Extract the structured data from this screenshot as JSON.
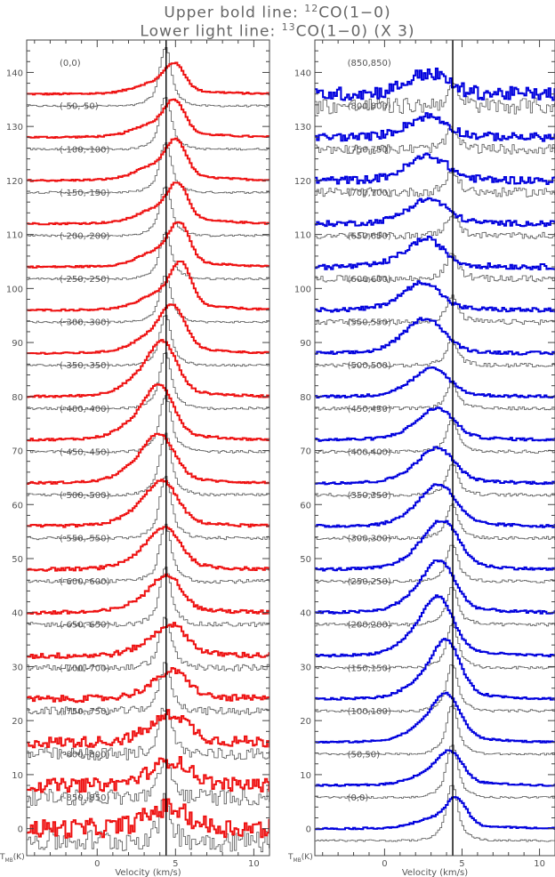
{
  "title": {
    "line1_prefix": "Upper bold line: ",
    "line1_sup": "12",
    "line1_suffix": "CO(1−0)",
    "line2_prefix": "Lower light line: ",
    "line2_sup": "13",
    "line2_suffix": "CO(1−0) (X 3)"
  },
  "colors": {
    "left_bold": "#ee1111",
    "right_bold": "#0000dd",
    "light": "#555555",
    "axis": "#444444"
  },
  "chart_data": [
    {
      "type": "line",
      "panel": "left",
      "xlabel": "Velocity (km/s)",
      "ylabel": "T_MB(K)",
      "xlim": [
        -4.5,
        11
      ],
      "ylim": [
        -5,
        146
      ],
      "x_ticks": [
        0,
        5,
        10
      ],
      "y_ticks": [
        0,
        10,
        20,
        30,
        40,
        50,
        60,
        70,
        80,
        90,
        100,
        110,
        120,
        130,
        140
      ],
      "reference_velocity": 4.4,
      "series": [
        {
          "offset": "(0,0)",
          "baseline": 136,
          "co12_peak": 4.5,
          "co12_center": 4.9,
          "co12_width": 0.9,
          "co13_peak": 9.5,
          "noise": 0.3
        },
        {
          "offset": "(-50,-50)",
          "baseline": 128,
          "co12_peak": 5.5,
          "co12_center": 4.9,
          "co12_width": 0.9,
          "co13_peak": 8.5,
          "noise": 0.3
        },
        {
          "offset": "(-100,-100)",
          "baseline": 120,
          "co12_peak": 6,
          "co12_center": 5.0,
          "co12_width": 0.9,
          "co13_peak": 8,
          "noise": 0.3
        },
        {
          "offset": "(-150,-150)",
          "baseline": 112,
          "co12_peak": 6,
          "co12_center": 5.1,
          "co12_width": 0.9,
          "co13_peak": 8,
          "noise": 0.3
        },
        {
          "offset": "(-200,-200)",
          "baseline": 104,
          "co12_peak": 6.5,
          "co12_center": 5.2,
          "co12_width": 0.9,
          "co13_peak": 7.5,
          "noise": 0.3
        },
        {
          "offset": "(-250,-250)",
          "baseline": 96,
          "co12_peak": 7,
          "co12_center": 5.3,
          "co12_width": 0.9,
          "co13_peak": 7.5,
          "noise": 0.3
        },
        {
          "offset": "(-300,-300)",
          "baseline": 88,
          "co12_peak": 7,
          "co12_center": 4.8,
          "co12_width": 1.1,
          "co13_peak": 8,
          "noise": 0.3
        },
        {
          "offset": "(-350,-350)",
          "baseline": 80,
          "co12_peak": 8,
          "co12_center": 4.2,
          "co12_width": 1.2,
          "co13_peak": 9,
          "noise": 0.4
        },
        {
          "offset": "(-400,-400)",
          "baseline": 72,
          "co12_peak": 8,
          "co12_center": 4.0,
          "co12_width": 1.2,
          "co13_peak": 9,
          "noise": 0.4
        },
        {
          "offset": "(-450,-450)",
          "baseline": 64,
          "co12_peak": 7,
          "co12_center": 4.0,
          "co12_width": 1.3,
          "co13_peak": 10,
          "noise": 0.4
        },
        {
          "offset": "(-500,-500)",
          "baseline": 56,
          "co12_peak": 6.5,
          "co12_center": 4.2,
          "co12_width": 1.3,
          "co13_peak": 10,
          "noise": 0.5
        },
        {
          "offset": "(-550,-550)",
          "baseline": 48,
          "co12_peak": 6,
          "co12_center": 4.4,
          "co12_width": 1.3,
          "co13_peak": 9,
          "noise": 0.6
        },
        {
          "offset": "(-600,-600)",
          "baseline": 40,
          "co12_peak": 5.5,
          "co12_center": 4.5,
          "co12_width": 1.2,
          "co13_peak": 9,
          "noise": 0.7
        },
        {
          "offset": "(-650,-650)",
          "baseline": 32,
          "co12_peak": 4.5,
          "co12_center": 4.8,
          "co12_width": 1.3,
          "co13_peak": 8,
          "noise": 1.0
        },
        {
          "offset": "(-700,-700)",
          "baseline": 24,
          "co12_peak": 4,
          "co12_center": 4.9,
          "co12_width": 1.3,
          "co13_peak": 7.5,
          "noise": 1.2
        },
        {
          "offset": "(-750,-750)",
          "baseline": 16,
          "co12_peak": 4,
          "co12_center": 4.9,
          "co12_width": 1.4,
          "co13_peak": 8,
          "noise": 2.0
        },
        {
          "offset": "(-800,-800)",
          "baseline": 8,
          "co12_peak": 3.5,
          "co12_center": 4.9,
          "co12_width": 1.5,
          "co13_peak": 6,
          "noise": 2.5
        },
        {
          "offset": "(-850,-850)",
          "baseline": 0,
          "co12_peak": 3,
          "co12_center": 4.7,
          "co12_width": 1.5,
          "co13_peak": 6,
          "noise": 3.5
        }
      ]
    },
    {
      "type": "line",
      "panel": "right",
      "xlabel": "Velocity (km/s)",
      "ylabel": "T_MB(K)",
      "xlim": [
        -4.5,
        11
      ],
      "ylim": [
        -5,
        146
      ],
      "x_ticks": [
        0,
        5,
        10
      ],
      "y_ticks": [
        0,
        10,
        20,
        30,
        40,
        50,
        60,
        70,
        80,
        90,
        100,
        110,
        120,
        130,
        140
      ],
      "reference_velocity": 4.4,
      "series": [
        {
          "offset": "(850,850)",
          "baseline": 136,
          "co12_peak": 3,
          "co12_center": 3.0,
          "co12_width": 1.5,
          "co13_peak": 3,
          "noise": 2.5
        },
        {
          "offset": "(800,800)",
          "baseline": 128,
          "co12_peak": 3,
          "co12_center": 3.0,
          "co12_width": 1.5,
          "co13_peak": 3,
          "noise": 1.5
        },
        {
          "offset": "(750,750)",
          "baseline": 120,
          "co12_peak": 3.5,
          "co12_center": 3.0,
          "co12_width": 1.5,
          "co13_peak": 3.5,
          "noise": 1.4
        },
        {
          "offset": "(700,700)",
          "baseline": 112,
          "co12_peak": 3.5,
          "co12_center": 3.0,
          "co12_width": 1.5,
          "co13_peak": 3.5,
          "noise": 1.0
        },
        {
          "offset": "(650,650)",
          "baseline": 104,
          "co12_peak": 4,
          "co12_center": 2.8,
          "co12_width": 1.4,
          "co13_peak": 4,
          "noise": 1.0
        },
        {
          "offset": "(600,600)",
          "baseline": 96,
          "co12_peak": 4,
          "co12_center": 2.6,
          "co12_width": 1.4,
          "co13_peak": 4,
          "noise": 0.8
        },
        {
          "offset": "(550,550)",
          "baseline": 88,
          "co12_peak": 5,
          "co12_center": 2.8,
          "co12_width": 1.5,
          "co13_peak": 4,
          "noise": 0.6
        },
        {
          "offset": "(500,500)",
          "baseline": 80,
          "co12_peak": 4,
          "co12_center": 3.2,
          "co12_width": 1.4,
          "co13_peak": 4,
          "noise": 0.5
        },
        {
          "offset": "(450,450)",
          "baseline": 72,
          "co12_peak": 4.5,
          "co12_center": 3.5,
          "co12_width": 1.4,
          "co13_peak": 5,
          "noise": 0.5
        },
        {
          "offset": "(400,400)",
          "baseline": 64,
          "co12_peak": 5,
          "co12_center": 3.5,
          "co12_width": 1.4,
          "co13_peak": 5,
          "noise": 0.5
        },
        {
          "offset": "(350,350)",
          "baseline": 56,
          "co12_peak": 6,
          "co12_center": 3.6,
          "co12_width": 1.4,
          "co13_peak": 5.5,
          "noise": 0.5
        },
        {
          "offset": "(300,300)",
          "baseline": 48,
          "co12_peak": 7,
          "co12_center": 3.8,
          "co12_width": 1.4,
          "co13_peak": 6,
          "noise": 0.5
        },
        {
          "offset": "(250,250)",
          "baseline": 40,
          "co12_peak": 7.5,
          "co12_center": 3.6,
          "co12_width": 1.3,
          "co13_peak": 6,
          "noise": 0.5
        },
        {
          "offset": "(200,200)",
          "baseline": 32,
          "co12_peak": 8.5,
          "co12_center": 3.5,
          "co12_width": 1.3,
          "co13_peak": 7,
          "noise": 0.4
        },
        {
          "offset": "(150,150)",
          "baseline": 24,
          "co12_peak": 8.5,
          "co12_center": 4.0,
          "co12_width": 1.2,
          "co13_peak": 7.5,
          "noise": 0.4
        },
        {
          "offset": "(100,100)",
          "baseline": 16,
          "co12_peak": 7,
          "co12_center": 4.0,
          "co12_width": 1.2,
          "co13_peak": 8,
          "noise": 0.3
        },
        {
          "offset": "(50,50)",
          "baseline": 8,
          "co12_peak": 5,
          "co12_center": 4.2,
          "co12_width": 1.1,
          "co13_peak": 8.5,
          "noise": 0.3
        },
        {
          "offset": "(0,0)",
          "baseline": 0,
          "co12_peak": 4.5,
          "co12_center": 4.6,
          "co12_width": 0.9,
          "co13_peak": 9,
          "noise": 0.3
        }
      ]
    }
  ]
}
